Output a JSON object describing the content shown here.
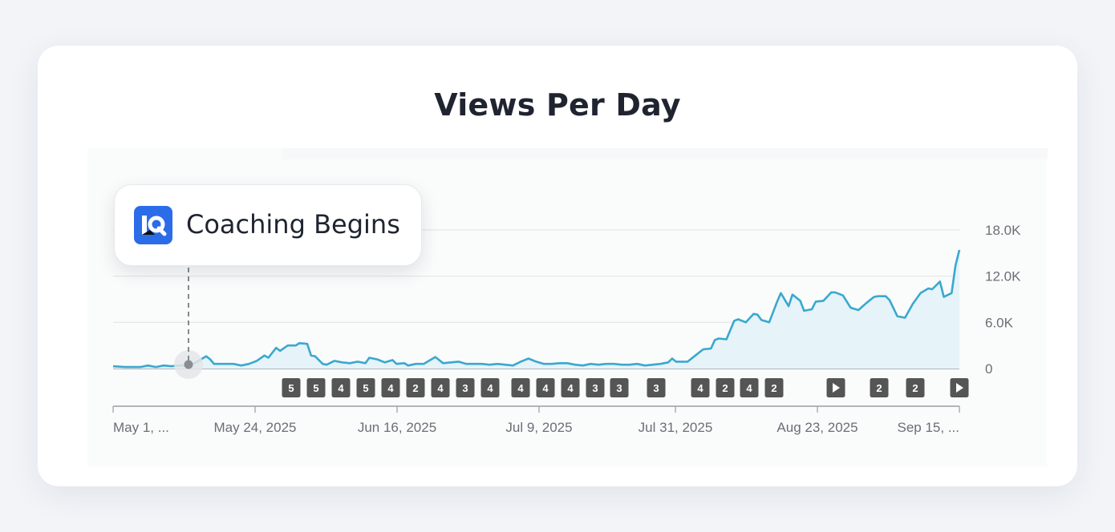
{
  "title": "Views Per Day",
  "annotation": {
    "label": "Coaching Begins",
    "icon": "coaching-logo-icon",
    "date": "2025-05-09"
  },
  "colors": {
    "line": "#3aa8cf",
    "area": "#e6f3f8",
    "badge": "#555555",
    "icon_bg": "#2b6ce8"
  },
  "badges": [
    {
      "label": "5",
      "kind": "number"
    },
    {
      "label": "5",
      "kind": "number"
    },
    {
      "label": "4",
      "kind": "number"
    },
    {
      "label": "5",
      "kind": "number"
    },
    {
      "label": "4",
      "kind": "number"
    },
    {
      "label": "2",
      "kind": "number"
    },
    {
      "label": "4",
      "kind": "number"
    },
    {
      "label": "3",
      "kind": "number"
    },
    {
      "label": "4",
      "kind": "number"
    },
    {
      "label": "4",
      "kind": "number"
    },
    {
      "label": "4",
      "kind": "number"
    },
    {
      "label": "4",
      "kind": "number"
    },
    {
      "label": "3",
      "kind": "number"
    },
    {
      "label": "3",
      "kind": "number"
    },
    {
      "label": "3",
      "kind": "number"
    },
    {
      "label": "4",
      "kind": "number"
    },
    {
      "label": "2",
      "kind": "number"
    },
    {
      "label": "4",
      "kind": "number"
    },
    {
      "label": "2",
      "kind": "number"
    },
    {
      "label": "",
      "kind": "play"
    },
    {
      "label": "2",
      "kind": "number"
    },
    {
      "label": "2",
      "kind": "number"
    },
    {
      "label": "",
      "kind": "play"
    }
  ],
  "chart_data": {
    "type": "area",
    "title": "Views Per Day",
    "xlabel": "",
    "ylabel": "",
    "x_ticks": [
      "May 1, ...",
      "May 24, 2025",
      "Jun 16, 2025",
      "Jul 9, 2025",
      "Jul 31, 2025",
      "Aug 23, 2025",
      "Sep 15, ..."
    ],
    "y_ticks": [
      "0",
      "6.0K",
      "12.0K",
      "18.0K"
    ],
    "ylim": [
      0,
      18000
    ],
    "y_axis_side": "right",
    "grid": true,
    "series": [
      {
        "values": [
          [
            0,
            300
          ],
          [
            3,
            200
          ],
          [
            7,
            200
          ],
          [
            9,
            400
          ],
          [
            11,
            200
          ],
          [
            13,
            400
          ],
          [
            15,
            300
          ],
          [
            17,
            400
          ],
          [
            19,
            400
          ],
          [
            21,
            700
          ],
          [
            22,
            1000
          ],
          [
            24,
            1600
          ],
          [
            25,
            1200
          ],
          [
            26,
            600
          ],
          [
            29,
            600
          ],
          [
            31,
            600
          ],
          [
            33,
            400
          ],
          [
            35,
            600
          ],
          [
            37,
            1000
          ],
          [
            39,
            1700
          ],
          [
            40,
            1400
          ],
          [
            42,
            2700
          ],
          [
            43,
            2300
          ],
          [
            45,
            3000
          ],
          [
            47,
            3000
          ],
          [
            48,
            3300
          ],
          [
            50,
            3200
          ],
          [
            51,
            1700
          ],
          [
            52,
            1600
          ],
          [
            54,
            600
          ],
          [
            55,
            500
          ],
          [
            57,
            1000
          ],
          [
            59,
            800
          ],
          [
            61,
            700
          ],
          [
            63,
            900
          ],
          [
            65,
            700
          ],
          [
            66,
            1400
          ],
          [
            68,
            1200
          ],
          [
            70,
            800
          ],
          [
            72,
            1100
          ],
          [
            73,
            600
          ],
          [
            75,
            700
          ],
          [
            76,
            400
          ],
          [
            78,
            600
          ],
          [
            80,
            600
          ],
          [
            82,
            1200
          ],
          [
            83,
            1500
          ],
          [
            85,
            700
          ],
          [
            87,
            800
          ],
          [
            89,
            900
          ],
          [
            91,
            600
          ],
          [
            93,
            600
          ],
          [
            95,
            600
          ],
          [
            97,
            500
          ],
          [
            99,
            600
          ],
          [
            101,
            500
          ],
          [
            103,
            400
          ],
          [
            105,
            900
          ],
          [
            107,
            1300
          ],
          [
            109,
            900
          ],
          [
            111,
            600
          ],
          [
            113,
            600
          ],
          [
            115,
            700
          ],
          [
            117,
            700
          ],
          [
            119,
            500
          ],
          [
            121,
            400
          ],
          [
            123,
            600
          ],
          [
            125,
            500
          ],
          [
            127,
            600
          ],
          [
            129,
            600
          ],
          [
            131,
            500
          ],
          [
            133,
            500
          ],
          [
            135,
            600
          ],
          [
            137,
            400
          ],
          [
            139,
            500
          ],
          [
            141,
            600
          ],
          [
            143,
            800
          ],
          [
            144,
            1300
          ],
          [
            145,
            900
          ],
          [
            148,
            900
          ],
          [
            150,
            1700
          ],
          [
            152,
            2500
          ],
          [
            154,
            2600
          ],
          [
            155,
            3700
          ],
          [
            156,
            3900
          ],
          [
            158,
            3800
          ],
          [
            160,
            6200
          ],
          [
            161,
            6400
          ],
          [
            163,
            6000
          ],
          [
            165,
            7100
          ],
          [
            166,
            7000
          ],
          [
            167,
            6300
          ],
          [
            169,
            6000
          ],
          [
            171,
            8600
          ],
          [
            172,
            9800
          ],
          [
            174,
            8100
          ],
          [
            175,
            9600
          ],
          [
            177,
            8800
          ],
          [
            178,
            7500
          ],
          [
            180,
            7700
          ],
          [
            181,
            8700
          ],
          [
            183,
            8800
          ],
          [
            185,
            9900
          ],
          [
            186,
            9900
          ],
          [
            188,
            9500
          ],
          [
            190,
            7900
          ],
          [
            192,
            7600
          ],
          [
            194,
            8500
          ],
          [
            196,
            9300
          ],
          [
            197,
            9400
          ],
          [
            199,
            9400
          ],
          [
            200,
            8900
          ],
          [
            202,
            6800
          ],
          [
            204,
            6600
          ],
          [
            206,
            8400
          ],
          [
            208,
            9800
          ],
          [
            210,
            10400
          ],
          [
            211,
            10300
          ],
          [
            213,
            11300
          ],
          [
            214,
            9300
          ],
          [
            216,
            9800
          ],
          [
            217,
            13400
          ],
          [
            218,
            15400
          ]
        ]
      }
    ]
  }
}
